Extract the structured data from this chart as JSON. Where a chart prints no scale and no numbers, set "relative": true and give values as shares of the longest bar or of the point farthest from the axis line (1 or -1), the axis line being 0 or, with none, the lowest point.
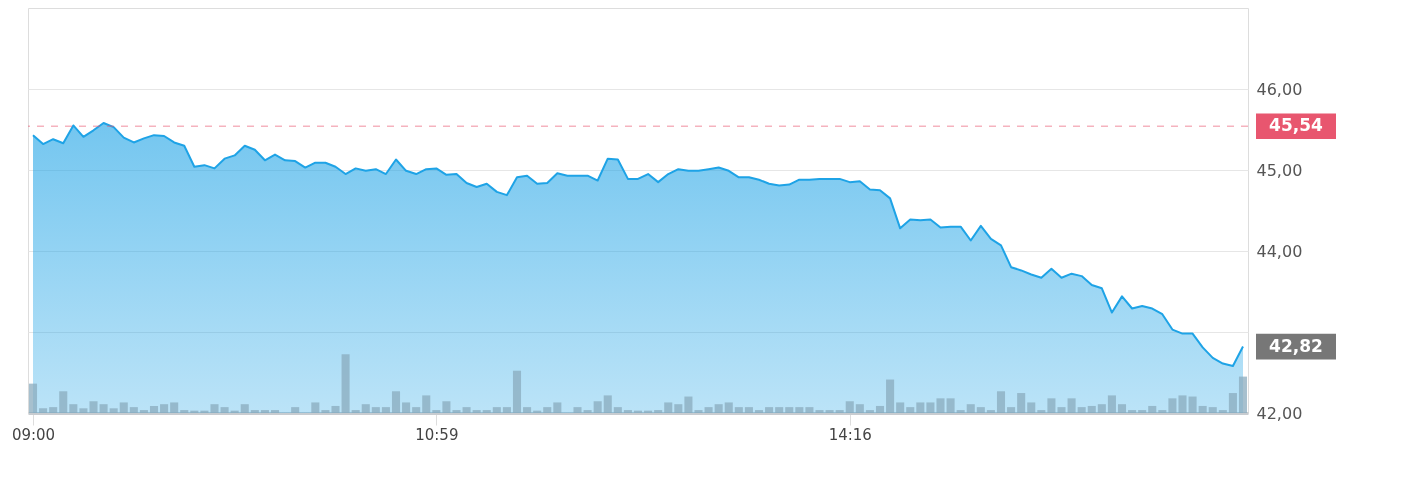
{
  "chart_data": [
    {
      "type": "area",
      "categories": [
        "09:00",
        null,
        null,
        null,
        null,
        null,
        null,
        null,
        null,
        null,
        null,
        null,
        null,
        null,
        null,
        null,
        null,
        null,
        null,
        null,
        null,
        null,
        null,
        null,
        null,
        null,
        null,
        null,
        null,
        null,
        null,
        null,
        null,
        null,
        null,
        null,
        null,
        null,
        null,
        null,
        "10:59",
        null,
        null,
        null,
        null,
        null,
        null,
        null,
        null,
        null,
        null,
        null,
        null,
        null,
        null,
        null,
        null,
        null,
        null,
        null,
        null,
        null,
        null,
        null,
        null,
        null,
        null,
        null,
        null,
        null,
        null,
        null,
        null,
        null,
        null,
        null,
        null,
        null,
        null,
        null,
        null,
        "14:16",
        null,
        null,
        null,
        null,
        null,
        null,
        null,
        null,
        null,
        null,
        null,
        null,
        null,
        null,
        null,
        null,
        null,
        null,
        null,
        null,
        null,
        null,
        null,
        null,
        null,
        null,
        null,
        null,
        null,
        null,
        null,
        null,
        null,
        null,
        null,
        null,
        null,
        null,
        null
      ],
      "series": [
        {
          "color": "#1ea3e6",
          "values": [
            45.43,
            45.32,
            45.38,
            45.33,
            45.55,
            45.41,
            45.49,
            45.58,
            45.53,
            45.4,
            45.34,
            45.39,
            45.43,
            45.42,
            45.34,
            45.3,
            45.04,
            45.06,
            45.02,
            45.14,
            45.18,
            45.3,
            45.25,
            45.12,
            45.19,
            45.12,
            45.11,
            45.03,
            45.09,
            45.09,
            45.04,
            44.95,
            45.02,
            44.99,
            45.01,
            44.95,
            45.13,
            44.99,
            44.95,
            45.01,
            45.02,
            44.94,
            44.95,
            44.84,
            44.79,
            44.83,
            44.73,
            44.69,
            44.91,
            44.93,
            44.83,
            44.84,
            44.96,
            44.93,
            44.93,
            44.93,
            44.87,
            45.14,
            45.13,
            44.89,
            44.89,
            44.95,
            44.85,
            44.95,
            45.01,
            44.99,
            44.99,
            45.01,
            45.03,
            44.99,
            44.91,
            44.91,
            44.88,
            44.83,
            44.81,
            44.82,
            44.88,
            44.88,
            44.89,
            44.89,
            44.89,
            44.85,
            44.86,
            44.76,
            44.75,
            44.65,
            44.28,
            44.39,
            44.38,
            44.39,
            44.29,
            44.3,
            44.3,
            44.13,
            44.31,
            44.15,
            44.07,
            43.8,
            43.76,
            43.71,
            43.67,
            43.78,
            43.67,
            43.72,
            43.69,
            43.58,
            43.54,
            43.24,
            43.44,
            43.29,
            43.32,
            43.29,
            43.22,
            43.03,
            42.98,
            42.98,
            42.81,
            42.68,
            42.61,
            42.58,
            42.82
          ]
        }
      ],
      "ylim": [
        42,
        47
      ],
      "yticks": [
        {
          "value": 42,
          "label": "42,00"
        },
        {
          "value": 43,
          "label": null
        },
        {
          "value": 44,
          "label": "44,00"
        },
        {
          "value": 45,
          "label": "45,00"
        },
        {
          "value": 46,
          "label": "46,00"
        }
      ],
      "grid": "y",
      "ref_lines": [
        {
          "axis": "y",
          "value": 45.54,
          "label": "45,54",
          "color": "#e8566f",
          "line_style": "dashed"
        }
      ],
      "annotations": [
        "42,82"
      ]
    },
    {
      "type": "bar",
      "relative": true,
      "color": "#8aabbd",
      "categories": [
        null,
        null,
        null,
        null,
        null,
        null,
        null,
        null,
        null,
        null,
        null,
        null,
        null,
        null,
        null,
        null,
        null,
        null,
        null,
        null,
        null,
        null,
        null,
        null,
        null,
        null,
        null,
        null,
        null,
        null,
        null,
        null,
        null,
        null,
        null,
        null,
        null,
        null,
        null,
        null,
        null,
        null,
        null,
        null,
        null,
        null,
        null,
        null,
        null,
        null,
        null,
        null,
        null,
        null,
        null,
        null,
        null,
        null,
        null,
        null,
        null,
        null,
        null,
        null,
        null,
        null,
        null,
        null,
        null,
        null,
        null,
        null,
        null,
        null,
        null,
        null,
        null,
        null,
        null,
        null,
        null,
        null,
        null,
        null,
        null,
        null,
        null,
        null,
        null,
        null,
        null,
        null,
        null,
        null,
        null,
        null,
        null,
        null,
        null,
        null,
        null,
        null,
        null,
        null,
        null,
        null,
        null,
        null,
        null,
        null,
        null,
        null,
        null,
        null,
        null,
        null,
        null,
        null,
        null,
        null,
        null
      ],
      "values": [
        0.5,
        0.08,
        0.1,
        0.37,
        0.15,
        0.08,
        0.2,
        0.15,
        0.08,
        0.18,
        0.1,
        0.05,
        0.12,
        0.15,
        0.18,
        0.05,
        0.04,
        0.04,
        0.15,
        0.1,
        0.04,
        0.15,
        0.05,
        0.05,
        0.05,
        0,
        0.1,
        0,
        0.18,
        0.05,
        0.12,
        1,
        0.05,
        0.15,
        0.1,
        0.1,
        0.37,
        0.18,
        0.1,
        0.3,
        0.05,
        0.2,
        0.05,
        0.1,
        0.05,
        0.05,
        0.1,
        0.1,
        0.72,
        0.1,
        0.04,
        0.1,
        0.18,
        0,
        0.1,
        0.05,
        0.2,
        0.3,
        0.1,
        0.05,
        0.04,
        0.04,
        0.05,
        0.18,
        0.15,
        0.28,
        0.05,
        0.1,
        0.15,
        0.18,
        0.1,
        0.1,
        0.05,
        0.1,
        0.1,
        0.1,
        0.1,
        0.1,
        0.05,
        0.05,
        0.05,
        0.2,
        0.15,
        0.05,
        0.12,
        0.57,
        0.18,
        0.1,
        0.18,
        0.18,
        0.25,
        0.25,
        0.05,
        0.15,
        0.1,
        0.05,
        0.37,
        0.1,
        0.34,
        0.18,
        0.05,
        0.25,
        0.1,
        0.25,
        0.1,
        0.12,
        0.15,
        0.3,
        0.15,
        0.05,
        0.05,
        0.12,
        0.05,
        0.25,
        0.3,
        0.28,
        0.12,
        0.1,
        0.05,
        0.34,
        0.62
      ]
    }
  ]
}
